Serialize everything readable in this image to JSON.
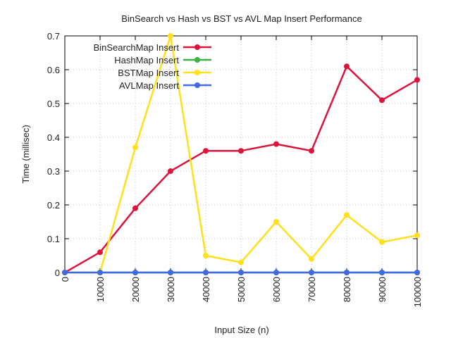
{
  "chart_data": {
    "type": "line",
    "title": "BinSearch vs Hash vs BST vs AVL Map Insert Performance",
    "xlabel": "Input Size (n)",
    "ylabel": "Time (millisec)",
    "xlim": [
      0,
      100000
    ],
    "ylim": [
      0,
      0.7
    ],
    "x": [
      0,
      10000,
      20000,
      30000,
      40000,
      50000,
      60000,
      70000,
      80000,
      90000,
      100000
    ],
    "x_tick_labels": [
      "0",
      "10000",
      "20000",
      "30000",
      "40000",
      "50000",
      "60000",
      "70000",
      "80000",
      "90000",
      "100000"
    ],
    "y_ticks": [
      0,
      0.1,
      0.2,
      0.3,
      0.4,
      0.5,
      0.6,
      0.7
    ],
    "y_tick_labels": [
      "0",
      "0.1",
      "0.2",
      "0.3",
      "0.4",
      "0.5",
      "0.6",
      "0.7"
    ],
    "grid": true,
    "legend_position": "top-left",
    "series": [
      {
        "name": "BinSearchMap Insert",
        "color": "#dc143c",
        "values": [
          0,
          0.06,
          0.19,
          0.3,
          0.36,
          0.36,
          0.38,
          0.36,
          0.61,
          0.51,
          0.57
        ]
      },
      {
        "name": "HashMap Insert",
        "color": "#3cb043",
        "values": [
          0,
          0,
          0,
          0,
          0,
          0,
          0,
          0,
          0,
          0,
          0
        ]
      },
      {
        "name": "BSTMap Insert",
        "color": "#ffe01a",
        "values": [
          0,
          0,
          0.37,
          0.7,
          0.05,
          0.03,
          0.15,
          0.04,
          0.17,
          0.09,
          0.11
        ]
      },
      {
        "name": "AVLMap Insert",
        "color": "#4169e1",
        "values": [
          0,
          0,
          0,
          0,
          0,
          0,
          0,
          0,
          0,
          0,
          0
        ]
      }
    ]
  }
}
